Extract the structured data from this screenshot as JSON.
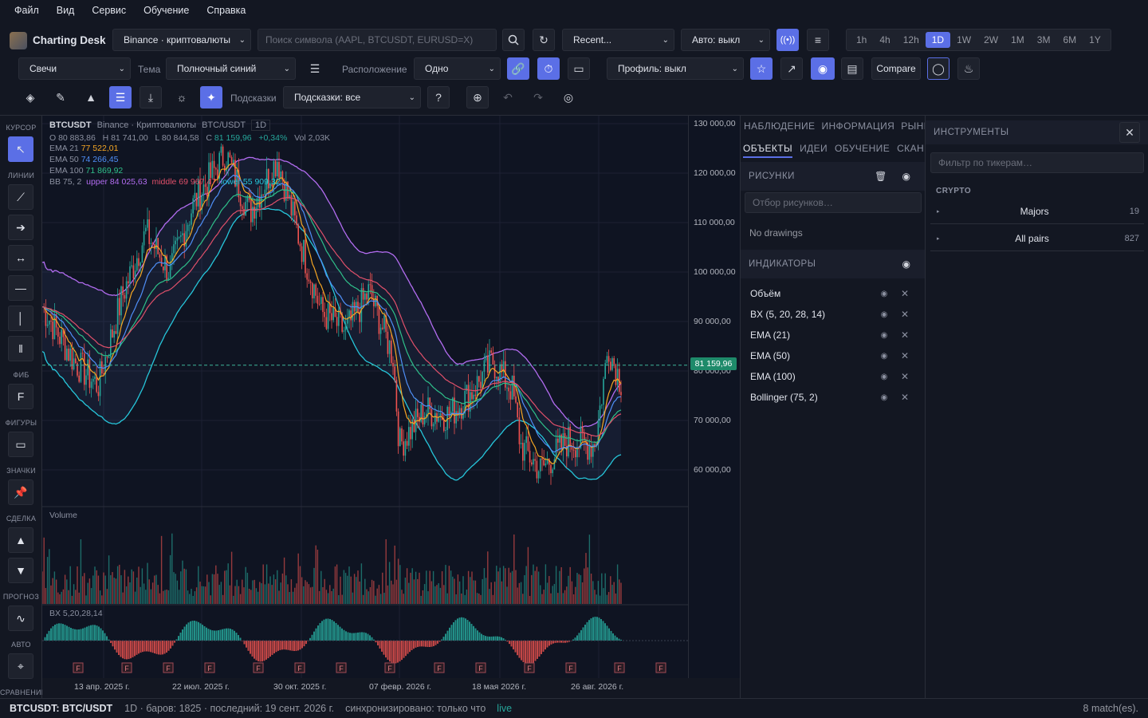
{
  "menu": [
    "Файл",
    "Вид",
    "Сервис",
    "Обучение",
    "Справка"
  ],
  "app": {
    "name": "Charting Desk"
  },
  "toolbar1": {
    "exchange": "Binance · криптовалюты",
    "search_placeholder": "Поиск символа (AAPL, BTCUSDT, EURUSD=X)",
    "recent": "Recent...",
    "auto": "Авто: выкл",
    "timeframes": [
      "1h",
      "4h",
      "12h",
      "1D",
      "1W",
      "2W",
      "1M",
      "3M",
      "6M",
      "1Y"
    ],
    "active_timeframe": "1D"
  },
  "toolbar2": {
    "chart_type": "Свечи",
    "theme_label": "Тема",
    "theme": "Полночный синий",
    "layout_label": "Расположение",
    "layout": "Одно",
    "profile": "Профиль: выкл",
    "compare": "Compare"
  },
  "toolbar3": {
    "hints_label": "Подсказки",
    "hints": "Подсказки: все"
  },
  "lefttools": {
    "cursor": "КУРСОР",
    "lines": "ЛИНИИ",
    "fib": "ФИБ",
    "fib_btn": "F",
    "shapes": "ФИГУРЫ",
    "icons": "ЗНАЧКИ",
    "trade": "СДЕЛКА",
    "forecast": "ПРОГНОЗ",
    "auto": "АВТО",
    "compare": "СРАВНЕНИЕ"
  },
  "legend": {
    "symbol": "BTCUSDT",
    "source": "Binance · Криптовалюты",
    "pair": "BTC/USDT",
    "tf": "1D",
    "o": "O 80 883,86",
    "h": "H 81 741,00",
    "l": "L 80 844,58",
    "c_label": "C",
    "c": "81 159,96",
    "chg": "+0,34%",
    "vol": "Vol 2,03K",
    "ema21_label": "EMA 21",
    "ema21": "77 522,01",
    "ema50_label": "EMA 50",
    "ema50": "74 266,45",
    "ema100_label": "EMA 100",
    "ema100": "71 869,92",
    "bb_label": "BB 75, 2",
    "bb_upper": "upper 84 025,63",
    "bb_middle": "middle 69 967,47",
    "bb_lower": "lower 55 909,32"
  },
  "volume_label": "Volume",
  "bx_label": "BX 5,20,28,14",
  "price_ticks": [
    "130 000,00",
    "120 000,00",
    "110 000,00",
    "100 000,00",
    "90 000,00",
    "80 000,00",
    "70 000,00",
    "60 000,00"
  ],
  "last_price": "81 159,96",
  "time_ticks": [
    "13 апр. 2025 г.",
    "22 июл. 2025 г.",
    "30 окт. 2025 г.",
    "07 февр. 2026 г.",
    "18 мая 2026 г.",
    "26 авг. 2026 г."
  ],
  "earnings_marker": "F",
  "panel": {
    "tabs_row1": [
      "НАБЛЮДЕНИЕ",
      "ИНФОРМАЦИЯ",
      "РЫНКИ"
    ],
    "tabs_row2": [
      "ОБЪЕКТЫ",
      "ИДЕИ",
      "ОБУЧЕНИЕ",
      "СКАНЕР"
    ],
    "drawings_head": "РИСУНКИ",
    "drawings_filter": "Отбор рисунков…",
    "no_drawings": "No drawings",
    "indicators_head": "ИНДИКАТОРЫ",
    "indicators": [
      "Объём",
      "BX (5, 20, 28, 14)",
      "EMA (21)",
      "EMA (50)",
      "EMA (100)",
      "Bollinger (75, 2)"
    ]
  },
  "tools": {
    "head": "ИНСТРУМЕНТЫ",
    "filter": "Фильтр по тикерам…",
    "group": "CRYPTO",
    "items": [
      {
        "name": "Majors",
        "count": "19"
      },
      {
        "name": "All pairs",
        "count": "827"
      }
    ]
  },
  "status": {
    "symbol": "BTCUSDT: BTC/USDT",
    "info": "1D · баров: 1825 · последний: 19 сент. 2026 г.",
    "sync": "синхронизировано: только что",
    "live": "live",
    "matches": "8 match(es)."
  },
  "colors": {
    "accent": "#5b6fe6",
    "up": "#26a69a",
    "down": "#ef5350",
    "ema21": "#f5a623",
    "ema50": "#4f8ff7",
    "ema100": "#e0506a",
    "bb": "#b26cf0",
    "bb_lower": "#26c6da"
  }
}
